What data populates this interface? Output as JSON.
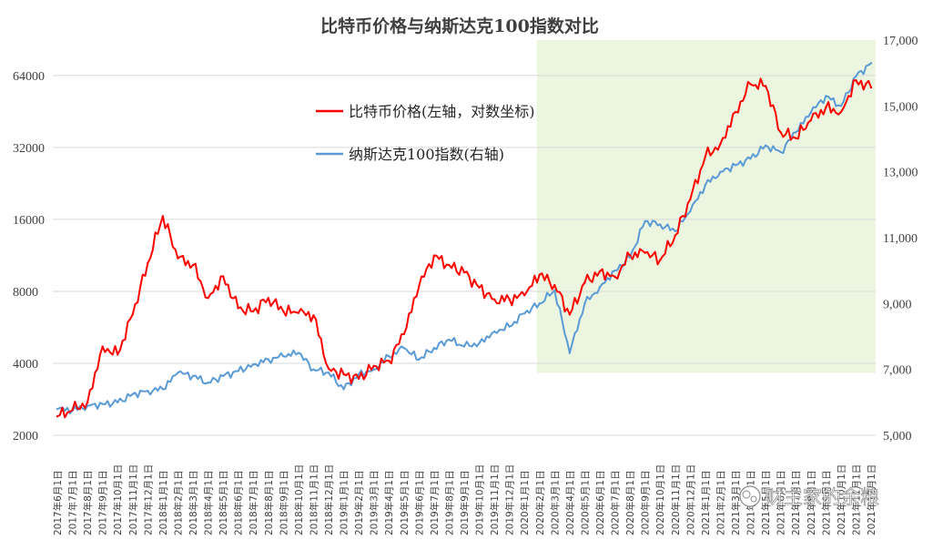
{
  "chart_data": {
    "type": "line",
    "title": "比特币价格与纳斯达克100指数对比",
    "x_tick_labels": [
      "2017年6月1日",
      "2017年7月1日",
      "2017年8月1日",
      "2017年9月1日",
      "2017年10月1日",
      "2017年11月1日",
      "2017年12月1日",
      "2018年1月1日",
      "2018年2月1日",
      "2018年3月1日",
      "2018年4月1日",
      "2018年5月1日",
      "2018年6月1日",
      "2018年7月1日",
      "2018年8月1日",
      "2018年9月1日",
      "2018年10月1日",
      "2018年11月1日",
      "2018年12月1日",
      "2019年1月1日",
      "2019年2月1日",
      "2019年3月1日",
      "2019年4月1日",
      "2019年5月1日",
      "2019年6月1日",
      "2019年7月1日",
      "2019年8月1日",
      "2019年9月1日",
      "2019年10月1日",
      "2019年11月1日",
      "2019年12月1日",
      "2020年1月1日",
      "2020年2月1日",
      "2020年3月1日",
      "2020年4月1日",
      "2020年5月1日",
      "2020年6月1日",
      "2020年7月1日",
      "2020年8月1日",
      "2020年9月1日",
      "2020年10月1日",
      "2020年11月1日",
      "2020年12月1日",
      "2021年1月1日",
      "2021年2月1日",
      "2021年3月1日",
      "2021年4月1日",
      "2021年5月1日",
      "2021年6月1日",
      "2021年7月1日",
      "2021年8月1日",
      "2021年9月1日",
      "2021年10月1日",
      "2021年11月1日",
      "2021年12月1日"
    ],
    "y_left": {
      "scale": "log2",
      "ticks": [
        2000,
        4000,
        8000,
        16000,
        32000,
        64000
      ],
      "tick_labels": [
        "2000",
        "4000",
        "8000",
        "16000",
        "32000",
        "64000"
      ],
      "ylim": [
        2000,
        90000
      ]
    },
    "y_right": {
      "scale": "linear",
      "ticks": [
        5000,
        7000,
        9000,
        11000,
        13000,
        15000,
        17000
      ],
      "tick_labels": [
        "5,000",
        "7,000",
        "9,000",
        "11,000",
        "13,000",
        "15,000",
        "17,000"
      ],
      "ylim": [
        5000,
        17000
      ]
    },
    "highlight_region": {
      "from": "2020年2月",
      "to": "2021年12月",
      "color": "#ebf5df"
    },
    "series": [
      {
        "name": "比特币价格(左轴，对数坐标)",
        "axis": "left",
        "color": "#ff0000",
        "values": [
          2400,
          2550,
          2750,
          4700,
          4350,
          6400,
          10500,
          16500,
          11000,
          10300,
          7500,
          9250,
          6800,
          6600,
          7500,
          6600,
          6500,
          6350,
          3800,
          3600,
          3450,
          3900,
          4100,
          5300,
          8400,
          11300,
          10300,
          9600,
          8300,
          7400,
          7400,
          7700,
          9400,
          8500,
          6400,
          8700,
          9700,
          9200,
          11300,
          11600,
          10800,
          13700,
          19400,
          29300,
          33100,
          45000,
          58800,
          57800,
          37000,
          35000,
          41500,
          47000,
          45000,
          61000,
          57000
        ]
      },
      {
        "name": "纳斯达克100指数(右轴)",
        "axis": "right",
        "color": "#5b9bd5",
        "values": [
          5800,
          5750,
          5900,
          5950,
          6000,
          6250,
          6350,
          6400,
          6900,
          6800,
          6600,
          6800,
          6950,
          7150,
          7300,
          7400,
          7500,
          7000,
          6900,
          6400,
          6850,
          7000,
          7400,
          7650,
          7300,
          7650,
          7900,
          7700,
          7800,
          8150,
          8300,
          8700,
          9000,
          9400,
          7500,
          9000,
          9500,
          10000,
          10400,
          11500,
          11400,
          11200,
          11800,
          12600,
          13000,
          13200,
          13400,
          13800,
          13600,
          14200,
          14800,
          15300,
          15000,
          15900,
          16300
        ]
      }
    ],
    "legend": {
      "position": "top-center",
      "items": [
        "比特币价格(左轴，对数坐标)",
        "纳斯达克100指数(右轴)"
      ]
    },
    "gridlines": "horizontal",
    "watermark": "财主家的余粮"
  }
}
